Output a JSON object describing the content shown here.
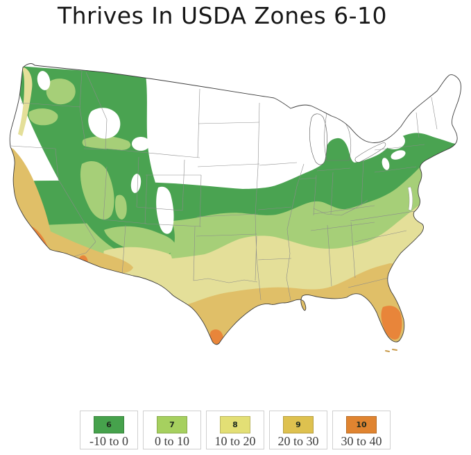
{
  "title": "Thrives In USDA Zones 6-10",
  "map": {
    "outline_color": "#3a3a3a",
    "state_line_color": "#8b8b8b",
    "lake_color": "#ffffff",
    "zone_colors": {
      "6": "#4aa351",
      "7": "#a6cf78",
      "8": "#e4df99",
      "9": "#e0bf68",
      "10": "#e8853a",
      "colder": "#ffffff"
    }
  },
  "legend": {
    "items": [
      {
        "zone": "6",
        "range": "-10 to 0",
        "color": "#46a24c"
      },
      {
        "zone": "7",
        "range": "0 to 10",
        "color": "#a6d05f"
      },
      {
        "zone": "8",
        "range": "10 to 20",
        "color": "#e3df75"
      },
      {
        "zone": "9",
        "range": "20 to 30",
        "color": "#dec14f"
      },
      {
        "zone": "10",
        "range": "30 to 40",
        "color": "#e08430"
      }
    ]
  }
}
